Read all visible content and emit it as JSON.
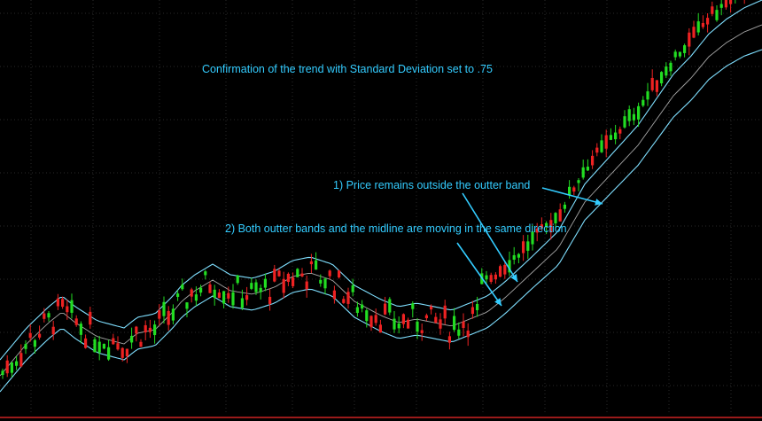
{
  "chart_data": {
    "type": "candlestick",
    "annotations": [
      "Confirmation of the trend with Standard Deviation set to .75",
      "1) Price remains outside the outter band",
      "2) Both outter bands and the midline are moving in the same direction"
    ],
    "ylim": [
      0,
      110
    ],
    "grid": true,
    "colors": {
      "background": "#000000",
      "grid": "#2a2a2a",
      "up_candle": "#22dd22",
      "down_candle": "#ee2222",
      "bands": "#7fdfff",
      "midline": "#cfcfcf",
      "annotation": "#33ccff",
      "bottom_line": "#cc2222"
    },
    "midline_keypoints": [
      [
        0,
        9
      ],
      [
        30,
        18
      ],
      [
        55,
        24
      ],
      [
        70,
        27
      ],
      [
        85,
        24
      ],
      [
        110,
        20
      ],
      [
        125,
        19
      ],
      [
        140,
        18
      ],
      [
        155,
        21
      ],
      [
        175,
        22
      ],
      [
        195,
        27
      ],
      [
        205,
        30
      ],
      [
        220,
        33
      ],
      [
        240,
        36
      ],
      [
        260,
        33
      ],
      [
        285,
        32
      ],
      [
        310,
        34
      ],
      [
        330,
        37
      ],
      [
        350,
        38
      ],
      [
        375,
        36
      ],
      [
        400,
        30
      ],
      [
        430,
        26
      ],
      [
        450,
        24
      ],
      [
        470,
        25
      ],
      [
        490,
        24
      ],
      [
        510,
        23
      ],
      [
        530,
        25
      ],
      [
        550,
        27
      ],
      [
        570,
        31
      ],
      [
        600,
        38
      ],
      [
        630,
        45
      ],
      [
        660,
        58
      ],
      [
        690,
        66
      ],
      [
        720,
        74
      ],
      [
        740,
        81
      ],
      [
        760,
        88
      ],
      [
        780,
        93
      ],
      [
        800,
        99
      ],
      [
        820,
        103
      ],
      [
        840,
        106
      ],
      [
        860,
        108
      ]
    ]
  }
}
